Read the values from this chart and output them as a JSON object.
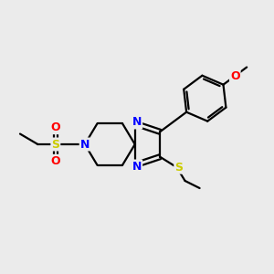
{
  "background_color": "#ebebeb",
  "atom_colors": {
    "N": "#0000ff",
    "S": "#cccc00",
    "O": "#ff0000",
    "C": "#000000"
  },
  "bond_color": "#000000",
  "bond_lw": 1.6,
  "figsize": [
    3.0,
    3.0
  ],
  "dpi": 100,
  "xlim": [
    20,
    280
  ],
  "ylim": [
    55,
    255
  ]
}
